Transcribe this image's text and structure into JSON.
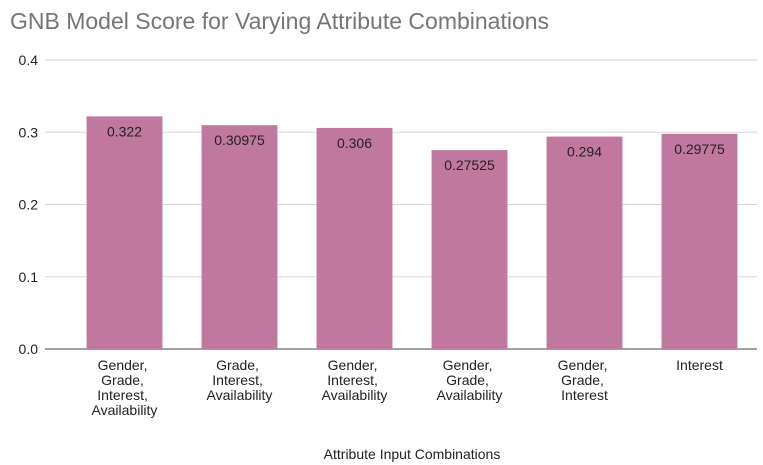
{
  "chart_data": {
    "type": "bar",
    "title": "GNB Model Score for Varying Attribute Combinations",
    "x_label": "Attribute Input Combinations",
    "categories": [
      "Gender, Grade, Interest, Availability",
      "Grade, Interest, Availability",
      "Gender, Interest, Availability",
      "Gender, Grade, Availability",
      "Gender, Grade, Interest",
      "Interest"
    ],
    "values": [
      0.322,
      0.30975,
      0.306,
      0.27525,
      0.294,
      0.29775
    ],
    "color": "#c0789f",
    "ylim": [
      0,
      0.4
    ],
    "yticks": [
      {
        "value": 0,
        "label": "0.0"
      },
      0.1,
      0.2,
      0.3,
      0.4
    ],
    "grid": true
  }
}
